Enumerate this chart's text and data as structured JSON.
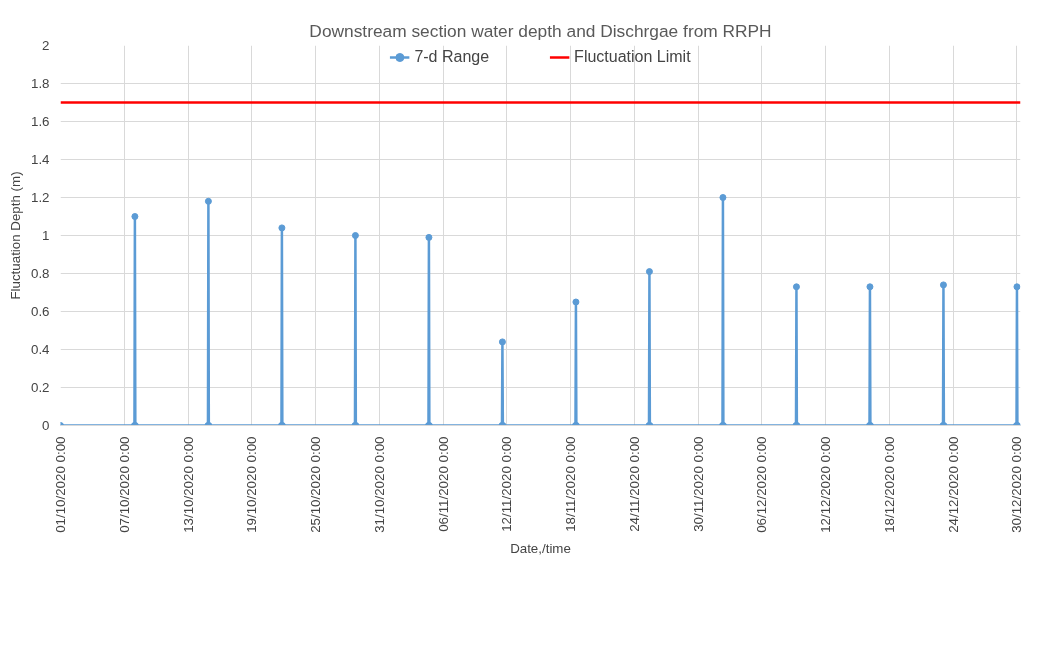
{
  "chart_data": {
    "type": "line",
    "title": "Downstream section water depth and Dischrgae from RRPH",
    "xlabel": "Date,/time",
    "ylabel": "Fluctuation Depth (m)",
    "xlim": [
      "2020-10-01T00:00",
      "2020-12-30T08:00"
    ],
    "ylim": [
      0,
      2
    ],
    "yticks": [
      0,
      0.2,
      0.4,
      0.6,
      0.8,
      1,
      1.2,
      1.4,
      1.6,
      1.8,
      2
    ],
    "xticks": [
      {
        "value": "2020-10-01",
        "label": "01/10/2020 0:00"
      },
      {
        "value": "2020-10-07",
        "label": "07/10/2020 0:00"
      },
      {
        "value": "2020-10-13",
        "label": "13/10/2020 0:00"
      },
      {
        "value": "2020-10-19",
        "label": "19/10/2020 0:00"
      },
      {
        "value": "2020-10-25",
        "label": "25/10/2020 0:00"
      },
      {
        "value": "2020-10-31",
        "label": "31/10/2020 0:00"
      },
      {
        "value": "2020-11-06",
        "label": "06/11/2020 0:00"
      },
      {
        "value": "2020-11-12",
        "label": "12/11/2020 0:00"
      },
      {
        "value": "2020-11-18",
        "label": "18/11/2020 0:00"
      },
      {
        "value": "2020-11-24",
        "label": "24/11/2020 0:00"
      },
      {
        "value": "2020-11-30",
        "label": "30/11/2020 0:00"
      },
      {
        "value": "2020-12-06",
        "label": "06/12/2020 0:00"
      },
      {
        "value": "2020-12-12",
        "label": "12/12/2020 0:00"
      },
      {
        "value": "2020-12-18",
        "label": "18/12/2020 0:00"
      },
      {
        "value": "2020-12-24",
        "label": "24/12/2020 0:00"
      },
      {
        "value": "2020-12-30",
        "label": "30/12/2020 0:00"
      }
    ],
    "grid": true,
    "legend": "top",
    "marker": "circle",
    "line_style": "solid",
    "series": [
      {
        "name": "7-d Range",
        "color": "#5b9bd5",
        "x": [
          "2020-10-01T00:00",
          "2020-10-07T23:00",
          "2020-10-08T00:00",
          "2020-10-08T01:00",
          "2020-10-14T21:00",
          "2020-10-14T22:00",
          "2020-10-14T23:00",
          "2020-10-21T19:00",
          "2020-10-21T20:00",
          "2020-10-21T21:00",
          "2020-10-28T17:00",
          "2020-10-28T18:00",
          "2020-10-28T19:00",
          "2020-11-04T15:00",
          "2020-11-04T16:00",
          "2020-11-04T17:00",
          "2020-11-11T13:00",
          "2020-11-11T14:00",
          "2020-11-11T15:00",
          "2020-11-18T11:00",
          "2020-11-18T12:00",
          "2020-11-18T13:00",
          "2020-11-25T09:00",
          "2020-11-25T10:00",
          "2020-11-25T11:00",
          "2020-12-02T07:00",
          "2020-12-02T08:00",
          "2020-12-02T09:00",
          "2020-12-09T05:00",
          "2020-12-09T06:00",
          "2020-12-09T07:00",
          "2020-12-16T03:00",
          "2020-12-16T04:00",
          "2020-12-16T05:00",
          "2020-12-23T01:00",
          "2020-12-23T02:00",
          "2020-12-23T03:00",
          "2020-12-29T23:00",
          "2020-12-30T00:00",
          "2020-12-30T01:00"
        ],
        "values": [
          0,
          0,
          1.1,
          0,
          0,
          1.18,
          0,
          0,
          1.04,
          0,
          0,
          1.0,
          0,
          0,
          0.99,
          0,
          0,
          0.44,
          0,
          0,
          0.65,
          0,
          0,
          0.81,
          0,
          0,
          1.2,
          0,
          0,
          0.73,
          0,
          0,
          0.73,
          0,
          0,
          0.74,
          0,
          0,
          0.73,
          0
        ]
      },
      {
        "name": "Fluctuation Limit",
        "color": "#ff0000",
        "marker": "none",
        "x": [
          "2020-10-01T00:00",
          "2020-12-30T08:00"
        ],
        "values": [
          1.7,
          1.7
        ]
      }
    ]
  }
}
